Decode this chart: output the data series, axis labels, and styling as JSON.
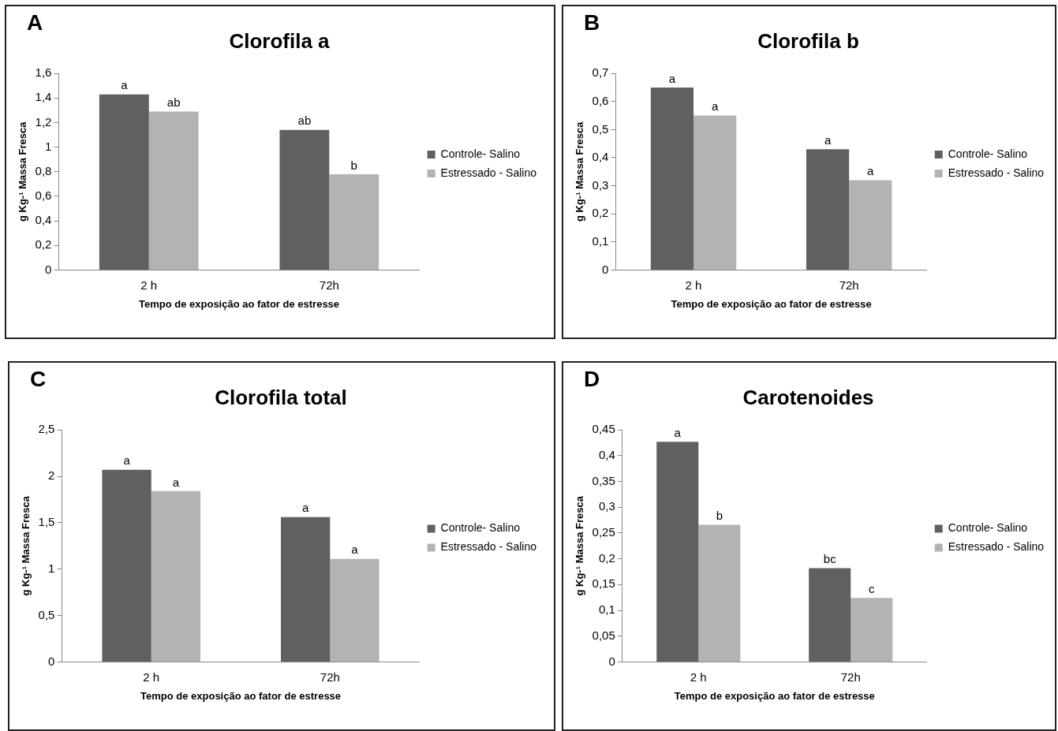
{
  "chart_data": [
    {
      "type": "bar",
      "title": "Clorofila a",
      "xlabel": "Tempo de exposição ao fator de estresse",
      "ylabel": "g Kg-¹ Massa Fresca",
      "categories": [
        "2 h",
        "72h"
      ],
      "series": [
        {
          "name": "Controle- Salino",
          "color": "#606060",
          "values": [
            1.43,
            1.14
          ]
        },
        {
          "name": "Estressado - Salino",
          "color": "#b3b3b3",
          "values": [
            1.29,
            0.78
          ]
        }
      ],
      "ylim": [
        0,
        1.6
      ],
      "yticks": [
        0,
        {
          "value": 0.2,
          "label": "0,2"
        },
        {
          "value": 0.4,
          "label": "0,4"
        },
        {
          "value": 0.6,
          "label": "0,6"
        },
        {
          "value": 0.8,
          "label": "0,8"
        },
        1,
        {
          "value": 1.2,
          "label": "1,2"
        },
        {
          "value": 1.4,
          "label": "1,4"
        },
        {
          "value": 1.6,
          "label": "1,6"
        }
      ],
      "legend": "right",
      "annotations": [
        "A",
        {
          "text": "a",
          "x": "2 h",
          "y": 1.43
        },
        {
          "text": "ab",
          "x": "2 h",
          "y": 1.29
        },
        {
          "text": "ab",
          "x": "72h",
          "y": 1.14
        },
        {
          "text": "b",
          "x": "72h",
          "y": 0.78
        }
      ]
    },
    {
      "type": "bar",
      "title": "Clorofila b",
      "xlabel": "Tempo de exposição ao fator de estresse",
      "ylabel": "g Kg-¹ Massa Fresca",
      "categories": [
        "2 h",
        "72h"
      ],
      "series": [
        {
          "name": "Controle- Salino",
          "color": "#606060",
          "values": [
            0.65,
            0.43
          ]
        },
        {
          "name": "Estressado - Salino",
          "color": "#b3b3b3",
          "values": [
            0.55,
            0.32
          ]
        }
      ],
      "ylim": [
        0,
        0.7
      ],
      "yticks": [
        0,
        {
          "value": 0.1,
          "label": "0,1"
        },
        {
          "value": 0.2,
          "label": "0,2"
        },
        {
          "value": 0.3,
          "label": "0,3"
        },
        {
          "value": 0.4,
          "label": "0,4"
        },
        {
          "value": 0.5,
          "label": "0,5"
        },
        {
          "value": 0.6,
          "label": "0,6"
        },
        {
          "value": 0.7,
          "label": "0,7"
        }
      ],
      "legend": "right",
      "annotations": [
        "B",
        {
          "text": "a",
          "x": "2 h",
          "y": 0.65
        },
        {
          "text": "a",
          "x": "2 h",
          "y": 0.55
        },
        {
          "text": "a",
          "x": "72h",
          "y": 0.43
        },
        {
          "text": "a",
          "x": "72h",
          "y": 0.32
        }
      ]
    },
    {
      "type": "bar",
      "title": "Clorofila total",
      "xlabel": "Tempo de exposição ao fator de estresse",
      "ylabel": "g Kg-¹ Massa Fresca",
      "categories": [
        "2 h",
        "72h"
      ],
      "series": [
        {
          "name": "Controle- Salino",
          "color": "#606060",
          "values": [
            2.07,
            1.56
          ]
        },
        {
          "name": "Estressado - Salino",
          "color": "#b3b3b3",
          "values": [
            1.84,
            1.11
          ]
        }
      ],
      "ylim": [
        0,
        2.5
      ],
      "yticks": [
        0,
        {
          "value": 0.5,
          "label": "0,5"
        },
        1,
        {
          "value": 1.5,
          "label": "1,5"
        },
        2,
        {
          "value": 2.5,
          "label": "2,5"
        }
      ],
      "legend": "right",
      "annotations": [
        "C",
        {
          "text": "a",
          "x": "2 h",
          "y": 2.07
        },
        {
          "text": "a",
          "x": "2 h",
          "y": 1.84
        },
        {
          "text": "a",
          "x": "72h",
          "y": 1.56
        },
        {
          "text": "a",
          "x": "72h",
          "y": 1.11
        }
      ]
    },
    {
      "type": "bar",
      "title": "Carotenoides",
      "xlabel": "Tempo de exposição ao fator de estresse",
      "ylabel": "g Kg-¹ Massa Fresca",
      "categories": [
        "2 h",
        "72h"
      ],
      "series": [
        {
          "name": "Controle- Salino",
          "color": "#606060",
          "values": [
            0.427,
            0.182
          ]
        },
        {
          "name": "Estressado - Salino",
          "color": "#b3b3b3",
          "values": [
            0.266,
            0.124
          ]
        }
      ],
      "ylim": [
        0,
        0.45
      ],
      "yticks": [
        0,
        {
          "value": 0.05,
          "label": "0,05"
        },
        {
          "value": 0.1,
          "label": "0,1"
        },
        {
          "value": 0.15,
          "label": "0,15"
        },
        {
          "value": 0.2,
          "label": "0,2"
        },
        {
          "value": 0.25,
          "label": "0,25"
        },
        {
          "value": 0.3,
          "label": "0,3"
        },
        {
          "value": 0.35,
          "label": "0,35"
        },
        {
          "value": 0.4,
          "label": "0,4"
        },
        {
          "value": 0.45,
          "label": "0,45"
        }
      ],
      "legend": "right",
      "annotations": [
        "D",
        {
          "text": "a",
          "x": "2 h",
          "y": 0.427
        },
        {
          "text": "b",
          "x": "2 h",
          "y": 0.266
        },
        {
          "text": "bc",
          "x": "72h",
          "y": 0.182
        },
        {
          "text": "c",
          "x": "72h",
          "y": 0.124
        }
      ]
    }
  ]
}
